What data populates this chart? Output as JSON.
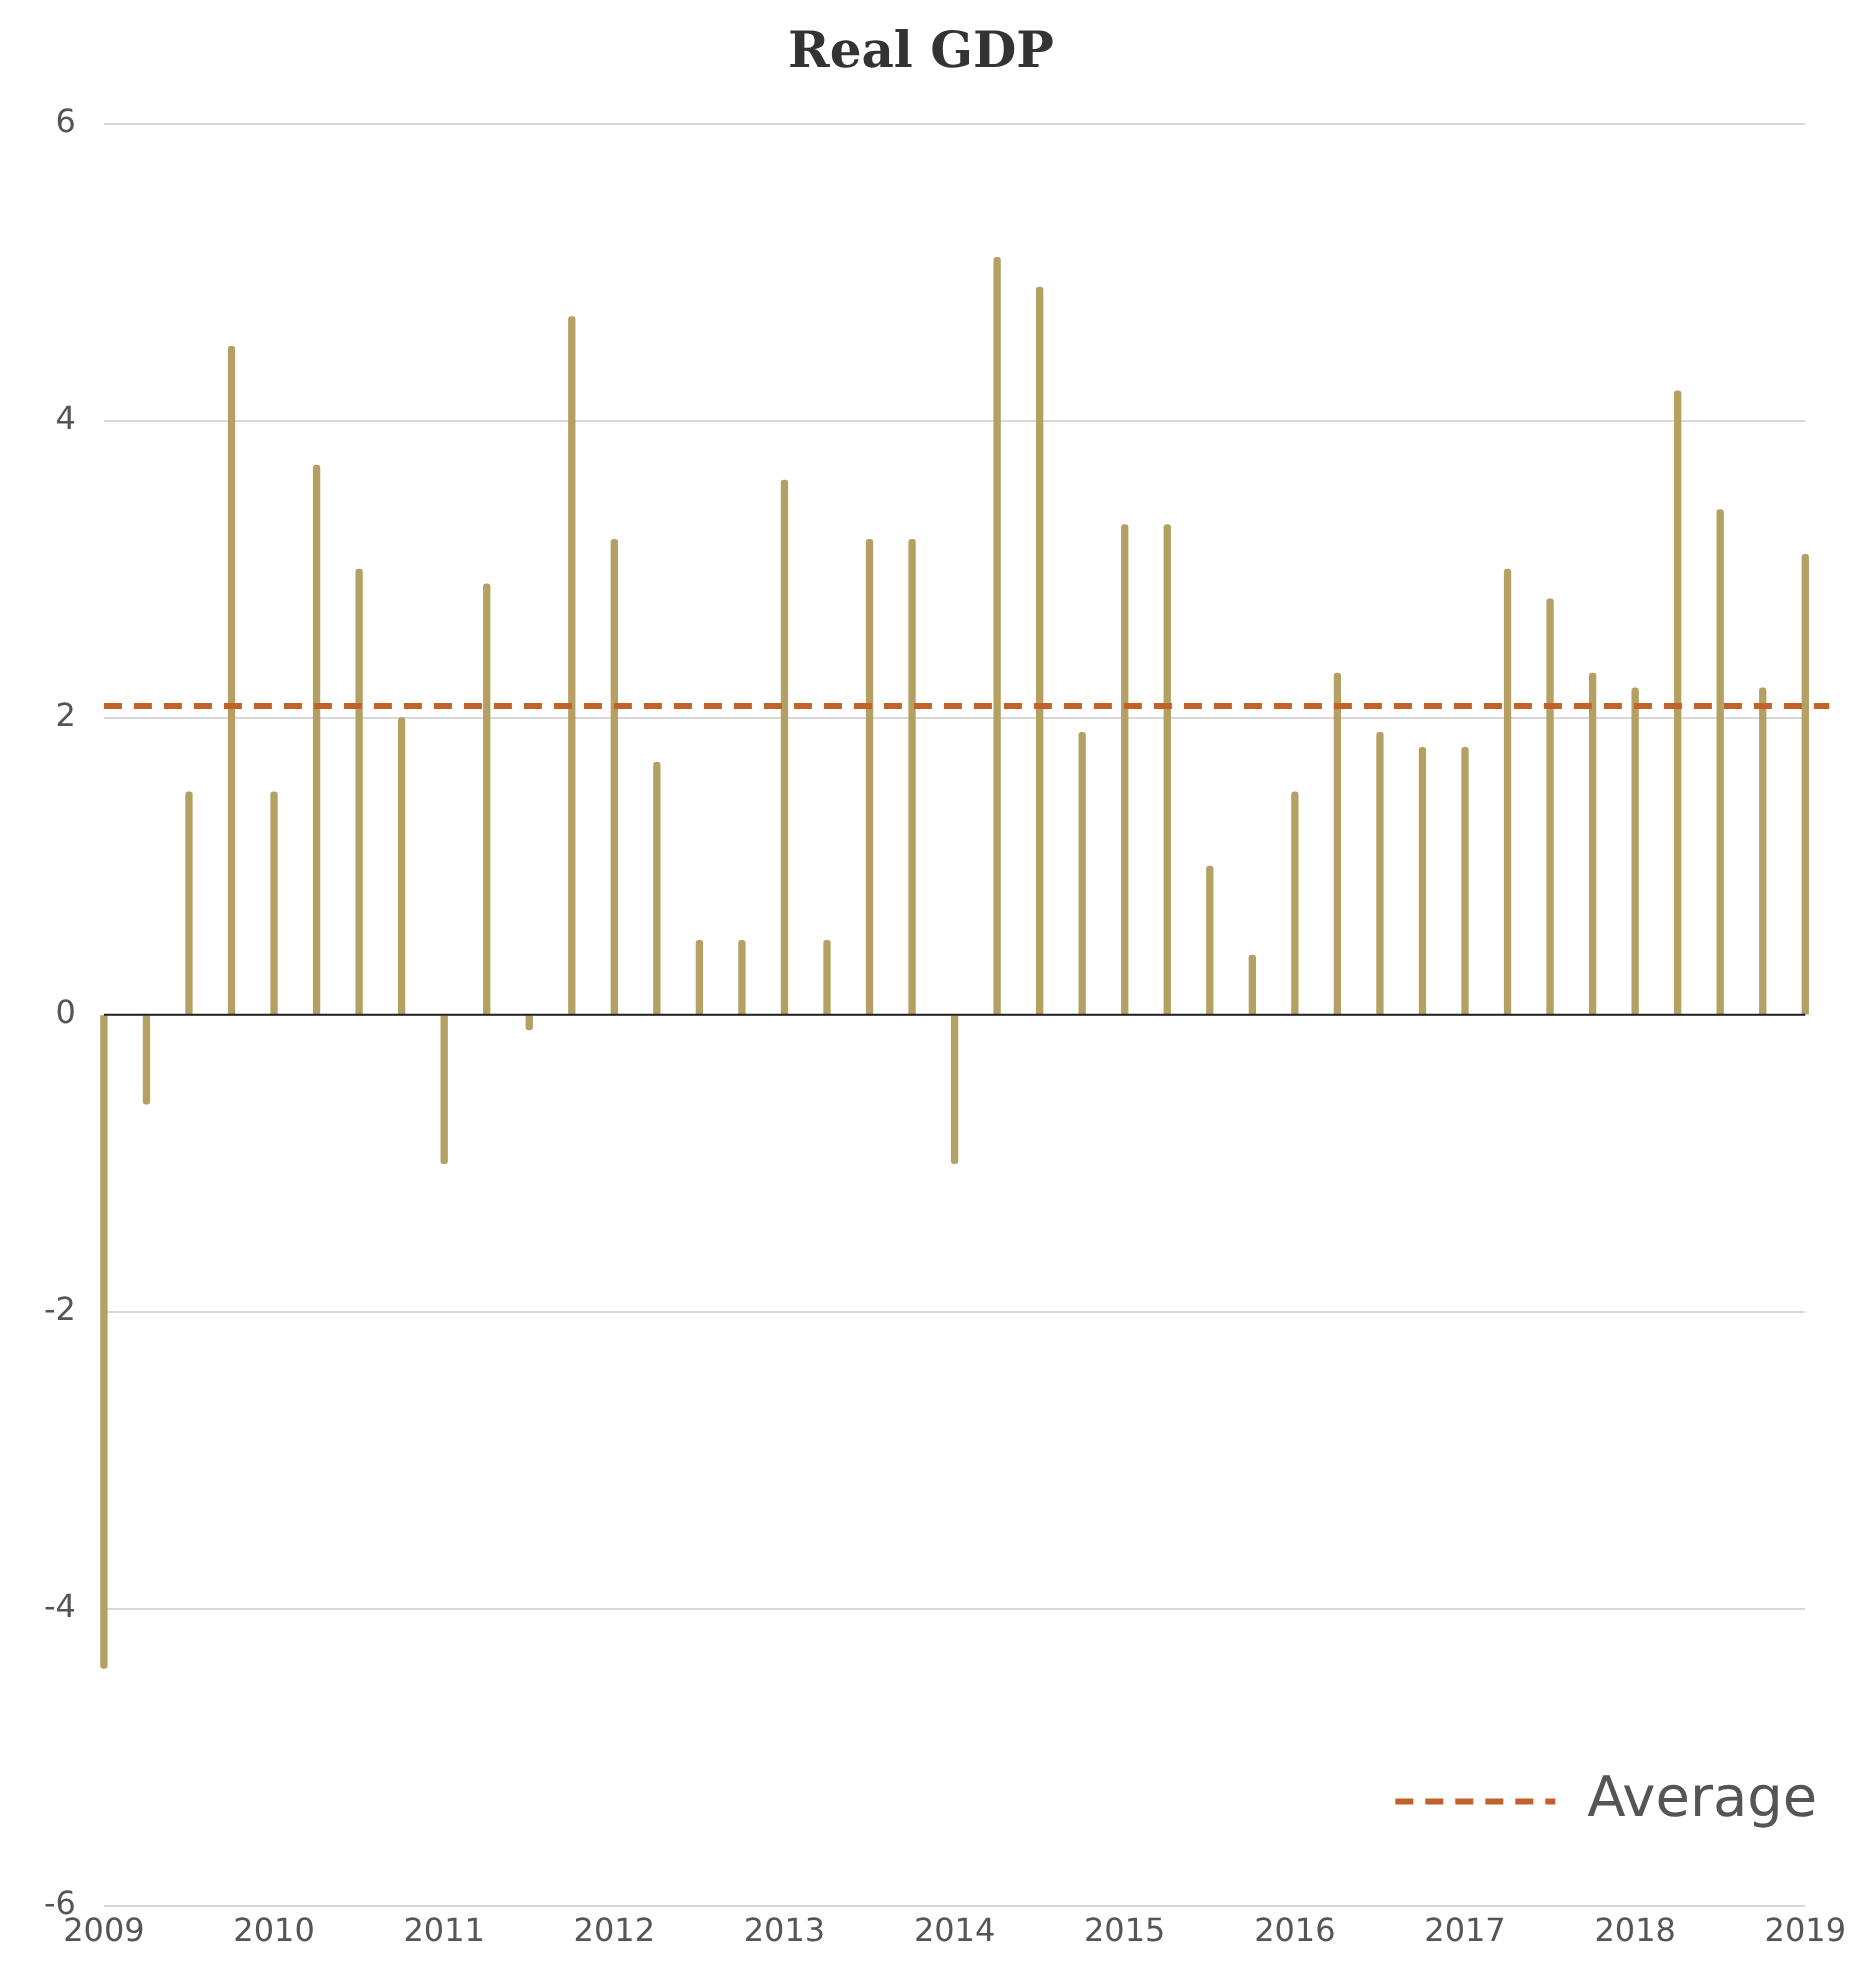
{
  "chart_data": {
    "type": "bar",
    "title": "Real GDP",
    "x": [
      2009,
      2009.25,
      2009.5,
      2009.75,
      2010,
      2010.25,
      2010.5,
      2010.75,
      2011,
      2011.25,
      2011.5,
      2011.75,
      2012,
      2012.25,
      2012.5,
      2012.75,
      2013,
      2013.25,
      2013.5,
      2013.75,
      2014,
      2014.25,
      2014.5,
      2014.75,
      2015,
      2015.25,
      2015.5,
      2015.75,
      2016,
      2016.25,
      2016.5,
      2016.75,
      2017,
      2017.25,
      2017.5,
      2017.75,
      2018,
      2018.25,
      2018.5,
      2018.75,
      2019
    ],
    "values": [
      -4.4,
      -0.6,
      1.5,
      4.5,
      1.5,
      3.7,
      3.0,
      2.0,
      -1.0,
      2.9,
      -0.1,
      4.7,
      3.2,
      1.7,
      0.5,
      0.5,
      3.6,
      0.5,
      3.2,
      3.2,
      -1.0,
      5.1,
      4.9,
      1.9,
      3.3,
      3.3,
      1.0,
      0.4,
      1.5,
      2.3,
      1.9,
      1.8,
      1.8,
      3.0,
      2.8,
      2.3,
      2.2,
      4.2,
      3.4,
      2.2,
      3.1
    ],
    "color": "#b5a064",
    "xlim": [
      2009,
      2019
    ],
    "xticks": [
      2009,
      2010,
      2011,
      2012,
      2013,
      2014,
      2015,
      2016,
      2017,
      2018,
      2019
    ],
    "ylim": [
      -6,
      6
    ],
    "yticks": [
      -6,
      -4,
      -2,
      0,
      2,
      4,
      6
    ],
    "ref_lines": [
      {
        "axis": "y",
        "value": 2.08,
        "label": "Average",
        "color": "#c0622a",
        "line_style": "dashed"
      }
    ],
    "grid": "y",
    "legend": "bottom right"
  }
}
